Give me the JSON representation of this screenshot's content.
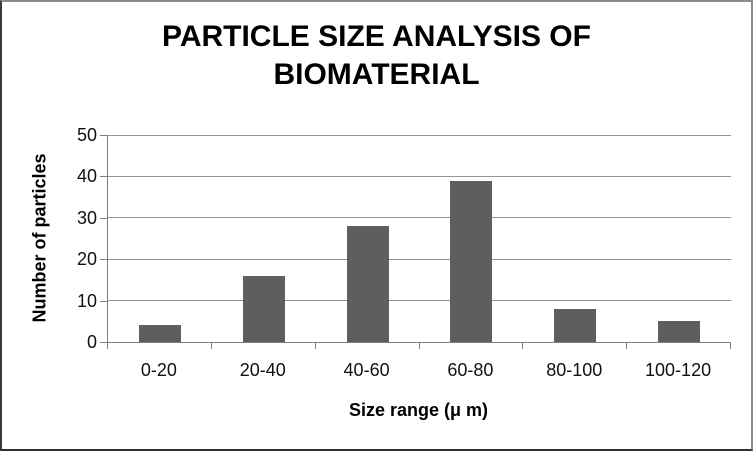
{
  "chart_data": {
    "type": "bar",
    "title": "PARTICLE SIZE ANALYSIS OF BIOMATERIAL",
    "categories": [
      "0-20",
      "20-40",
      "40-60",
      "60-80",
      "80-100",
      "100-120"
    ],
    "values": [
      4,
      16,
      28,
      39,
      8,
      5
    ],
    "xlabel": "Size range (μ m)",
    "ylabel": "Number of particles",
    "ylim": [
      0,
      50
    ],
    "y_ticks": [
      0,
      10,
      20,
      30,
      40,
      50
    ],
    "grid": true,
    "legend": "none",
    "colors": {
      "bar": "#5e5e5e",
      "gridline": "#969696",
      "axis": "#808080",
      "text": "#000000"
    }
  }
}
